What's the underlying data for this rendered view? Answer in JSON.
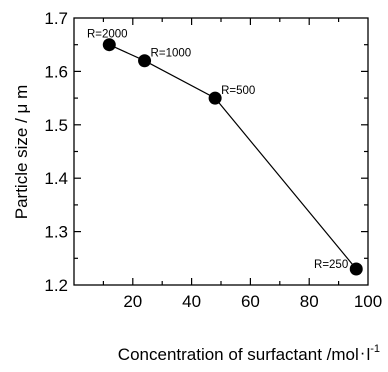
{
  "chart_data": {
    "type": "line",
    "xlabel_parts": [
      "Concentration of surfactant  /mol",
      "l",
      "-1"
    ],
    "ylabel": "Particle size  / μ m",
    "xlim": [
      0,
      100
    ],
    "ylim": [
      1.2,
      1.7
    ],
    "x_ticks": [
      "20",
      "40",
      "60",
      "80",
      "100"
    ],
    "y_ticks": [
      "1.2",
      "1.3",
      "1.4",
      "1.5",
      "1.6",
      "1.7"
    ],
    "grid": false,
    "series": [
      {
        "points": [
          {
            "x": 12,
            "y": 1.65,
            "label": "R=2000"
          },
          {
            "x": 24,
            "y": 1.62,
            "label": "R=1000"
          },
          {
            "x": 48,
            "y": 1.55,
            "label": "R=500"
          },
          {
            "x": 96,
            "y": 1.23,
            "label": "R=250"
          }
        ]
      }
    ]
  }
}
